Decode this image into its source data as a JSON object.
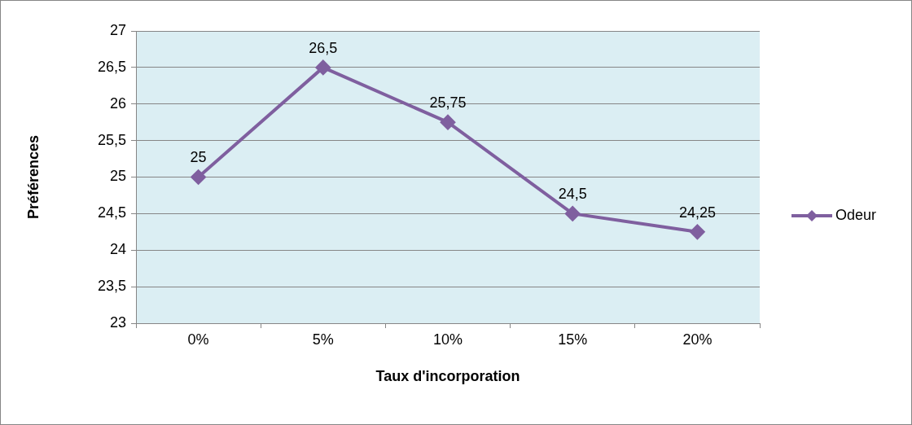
{
  "chart_data": {
    "type": "line",
    "xlabel": "Taux d'incorporation",
    "ylabel": "Préférences",
    "categories": [
      "0%",
      "5%",
      "10%",
      "15%",
      "20%"
    ],
    "series": [
      {
        "name": "Odeur",
        "color": "#7f5f9f",
        "values": [
          25,
          26.5,
          25.75,
          24.5,
          24.25
        ],
        "value_labels": [
          "25",
          "26,5",
          "25,75",
          "24,5",
          "24,25"
        ]
      }
    ],
    "ylim": [
      23,
      27
    ],
    "yticks": [
      23,
      {
        "value": 23.5,
        "label": "23,5"
      },
      24,
      {
        "value": 24.5,
        "label": "24,5"
      },
      25,
      {
        "value": 25.5,
        "label": "25,5"
      },
      26,
      {
        "value": 26.5,
        "label": "26,5"
      },
      27
    ],
    "grid": "y",
    "legend": "right",
    "marker": "diamond",
    "line_style": "solid"
  }
}
